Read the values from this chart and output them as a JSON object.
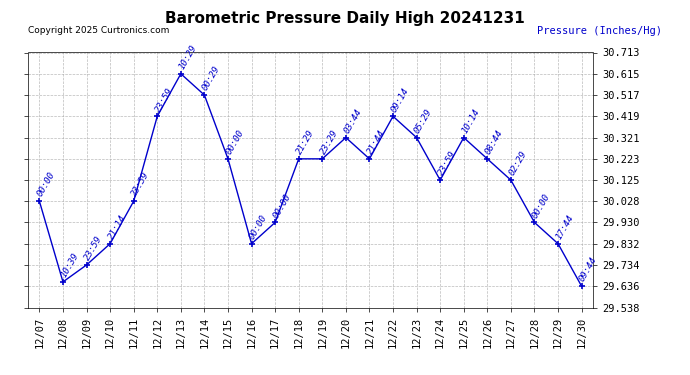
{
  "title": "Barometric Pressure Daily High 20241231",
  "copyright": "Copyright 2025 Curtronics.com",
  "ylabel": "Pressure (Inches/Hg)",
  "line_color": "#0000cc",
  "background_color": "#ffffff",
  "grid_color": "#aaaaaa",
  "title_color": "#000000",
  "label_color": "#0000cc",
  "tick_color": "#000000",
  "ylim": [
    29.538,
    30.713
  ],
  "yticks": [
    29.538,
    29.636,
    29.734,
    29.832,
    29.93,
    30.028,
    30.125,
    30.223,
    30.321,
    30.419,
    30.517,
    30.615,
    30.713
  ],
  "data": [
    {
      "x": 0,
      "date": "12/07",
      "value": 30.028,
      "time": "00:00"
    },
    {
      "x": 1,
      "date": "12/08",
      "value": 29.656,
      "time": "10:39"
    },
    {
      "x": 2,
      "date": "12/09",
      "value": 29.734,
      "time": "23:59"
    },
    {
      "x": 3,
      "date": "12/10",
      "value": 29.832,
      "time": "21:14"
    },
    {
      "x": 4,
      "date": "12/11",
      "value": 30.028,
      "time": "23:59"
    },
    {
      "x": 5,
      "date": "12/12",
      "value": 30.419,
      "time": "23:59"
    },
    {
      "x": 6,
      "date": "12/13",
      "value": 30.615,
      "time": "10:29"
    },
    {
      "x": 7,
      "date": "12/14",
      "value": 30.517,
      "time": "00:29"
    },
    {
      "x": 8,
      "date": "12/15",
      "value": 30.223,
      "time": "00:00"
    },
    {
      "x": 9,
      "date": "12/16",
      "value": 29.832,
      "time": "00:00"
    },
    {
      "x": 10,
      "date": "12/17",
      "value": 29.93,
      "time": "00:00"
    },
    {
      "x": 11,
      "date": "12/18",
      "value": 30.223,
      "time": "21:29"
    },
    {
      "x": 12,
      "date": "12/19",
      "value": 30.223,
      "time": "23:29"
    },
    {
      "x": 13,
      "date": "12/20",
      "value": 30.321,
      "time": "03:44"
    },
    {
      "x": 14,
      "date": "12/21",
      "value": 30.223,
      "time": "21:44"
    },
    {
      "x": 15,
      "date": "12/22",
      "value": 30.419,
      "time": "09:14"
    },
    {
      "x": 16,
      "date": "12/23",
      "value": 30.321,
      "time": "05:29"
    },
    {
      "x": 17,
      "date": "12/24",
      "value": 30.125,
      "time": "23:59"
    },
    {
      "x": 18,
      "date": "12/25",
      "value": 30.321,
      "time": "10:14"
    },
    {
      "x": 19,
      "date": "12/26",
      "value": 30.223,
      "time": "08:44"
    },
    {
      "x": 20,
      "date": "12/27",
      "value": 30.125,
      "time": "02:29"
    },
    {
      "x": 21,
      "date": "12/28",
      "value": 29.93,
      "time": "00:00"
    },
    {
      "x": 22,
      "date": "12/29",
      "value": 29.832,
      "time": "17:44"
    },
    {
      "x": 23,
      "date": "12/30",
      "value": 29.636,
      "time": "09:44"
    }
  ]
}
